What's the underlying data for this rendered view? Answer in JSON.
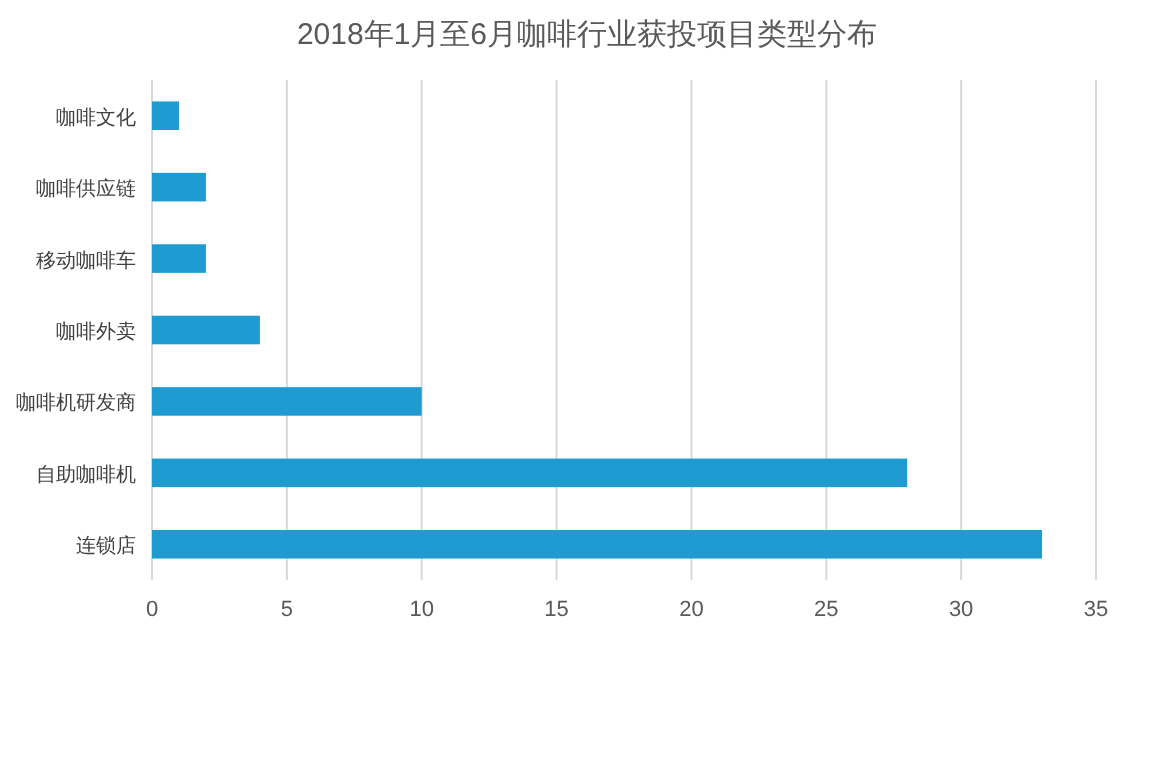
{
  "chart_data": {
    "type": "bar",
    "orientation": "horizontal",
    "title": "2018年1月至6月咖啡行业获投项目类型分布",
    "categories": [
      "咖啡文化",
      "咖啡供应链",
      "移动咖啡车",
      "咖啡外卖",
      "咖啡机研发商",
      "自助咖啡机",
      "连锁店"
    ],
    "values": [
      1,
      2,
      2,
      4,
      10,
      28,
      33
    ],
    "color": "#1f9bd1",
    "xlim": [
      0,
      35
    ],
    "xticks": [
      0,
      5,
      10,
      15,
      20,
      25,
      30,
      35
    ],
    "grid": "x"
  }
}
